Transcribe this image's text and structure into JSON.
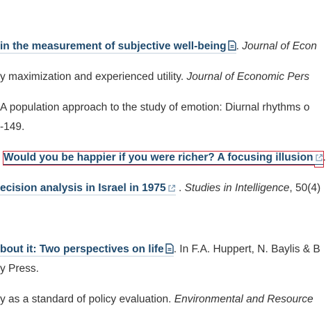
{
  "refs": [
    {
      "link": "in the measurement of subjective well-being",
      "icon": "document-icon",
      "after": ". ",
      "journal": "Journal of Econ"
    },
    {
      "text": "y maximization and experienced utility. ",
      "journal": "Journal of Economic Pers"
    },
    {
      "text": "A population approach to the study of emotion: Diurnal rhythms o"
    },
    {
      "text": "-149."
    },
    {
      "link": "Would you be happier if you were richer? A focusing illusion",
      "icon": "external-link-icon",
      "after": "."
    },
    {
      "link": "ecision analysis in Israel in 1975",
      "icon": "external-link-icon",
      "after": " . ",
      "journal": "Studies in Intelligence",
      "after2": ", 50(4)"
    },
    {
      "link": "bout it: Two perspectives on life",
      "icon": "document-icon",
      "after": ". In F.A. Huppert, N. Baylis & B"
    },
    {
      "text": "y Press."
    },
    {
      "text": "y as a standard of policy evaluation. ",
      "journal": "Environmental and Resource"
    }
  ],
  "colors": {
    "link": "#1f4a6e",
    "text": "#333333",
    "highlight_box": "#cc2233"
  }
}
